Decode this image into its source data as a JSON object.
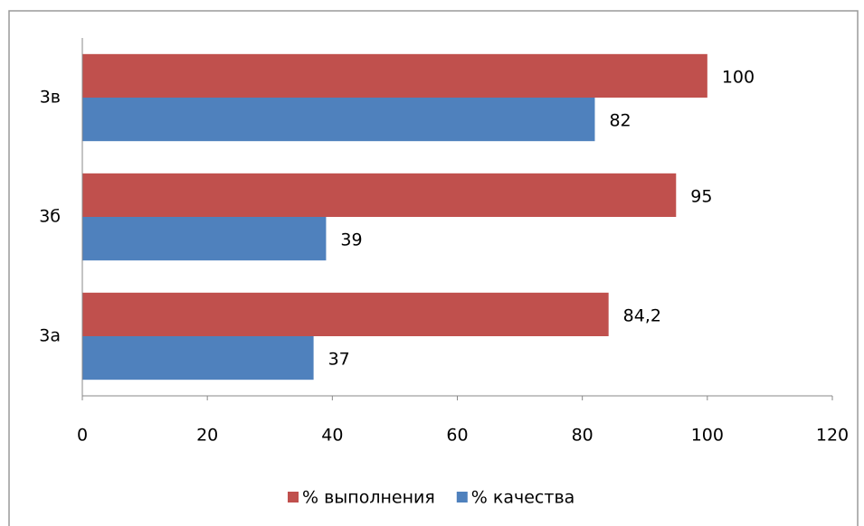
{
  "chart_data": {
    "type": "hbar",
    "categories": [
      "3а",
      "3б",
      "3в"
    ],
    "series": [
      {
        "name": "% выполнения",
        "color": "#c0504d",
        "values": [
          84.2,
          95,
          100
        ],
        "value_labels": [
          "84,2",
          "95",
          "100"
        ]
      },
      {
        "name": "% качества",
        "color": "#4f81bd",
        "values": [
          37,
          39,
          82
        ]
      }
    ],
    "xlim": [
      0,
      120
    ],
    "xticks": [
      0,
      20,
      40,
      60,
      80,
      100,
      120
    ],
    "grid": false,
    "legend": "bottom"
  }
}
